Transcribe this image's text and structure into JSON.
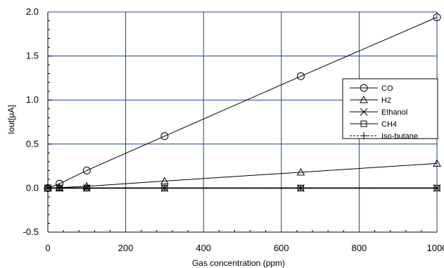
{
  "chart_data": {
    "type": "line",
    "xlabel": "Gas concentration (ppm)",
    "ylabel": "Iout[μA]",
    "xlim": [
      0,
      1000
    ],
    "ylim": [
      -0.5,
      2.0
    ],
    "x_ticks": [
      0,
      200,
      400,
      600,
      800,
      1000
    ],
    "y_ticks": [
      -0.5,
      0.0,
      0.5,
      1.0,
      1.5,
      2.0
    ],
    "x_tick_labels": [
      "0",
      "200",
      "400",
      "600",
      "800",
      "1000"
    ],
    "y_tick_labels": [
      "-0.5",
      "0.0",
      "0.5",
      "1.0",
      "1.5",
      "2.0"
    ],
    "grid": true,
    "legend_position": "right",
    "series": [
      {
        "name": "CO",
        "marker": "circle",
        "line_style": "solid",
        "points": [
          [
            0,
            0.0
          ],
          [
            30,
            0.05
          ],
          [
            100,
            0.2
          ],
          [
            300,
            0.59
          ],
          [
            650,
            1.27
          ],
          [
            1000,
            1.94
          ]
        ]
      },
      {
        "name": "H2",
        "marker": "triangle",
        "line_style": "solid",
        "points": [
          [
            0,
            0.0
          ],
          [
            30,
            0.005
          ],
          [
            100,
            0.02
          ],
          [
            300,
            0.08
          ],
          [
            650,
            0.18
          ],
          [
            1000,
            0.28
          ]
        ]
      },
      {
        "name": "Ethanol",
        "marker": "x",
        "line_style": "solid",
        "points": [
          [
            0,
            0.0
          ],
          [
            30,
            0.0
          ],
          [
            100,
            0.0
          ],
          [
            300,
            0.0
          ],
          [
            650,
            0.0
          ],
          [
            1000,
            0.0
          ]
        ]
      },
      {
        "name": "CH4",
        "marker": "square",
        "line_style": "solid",
        "points": [
          [
            0,
            0.0
          ],
          [
            30,
            0.0
          ],
          [
            100,
            0.0
          ],
          [
            300,
            0.0
          ],
          [
            650,
            0.0
          ],
          [
            1000,
            0.0
          ]
        ]
      },
      {
        "name": "Iso-butane",
        "marker": "plus",
        "line_style": "dashed",
        "points": [
          [
            0,
            0.0
          ],
          [
            30,
            0.0
          ],
          [
            100,
            0.0
          ],
          [
            300,
            0.0
          ],
          [
            650,
            0.0
          ],
          [
            1000,
            0.0
          ]
        ]
      }
    ],
    "colors": {
      "grid": "#1f3f8f",
      "axis": "#000000",
      "series": "#000000"
    }
  }
}
